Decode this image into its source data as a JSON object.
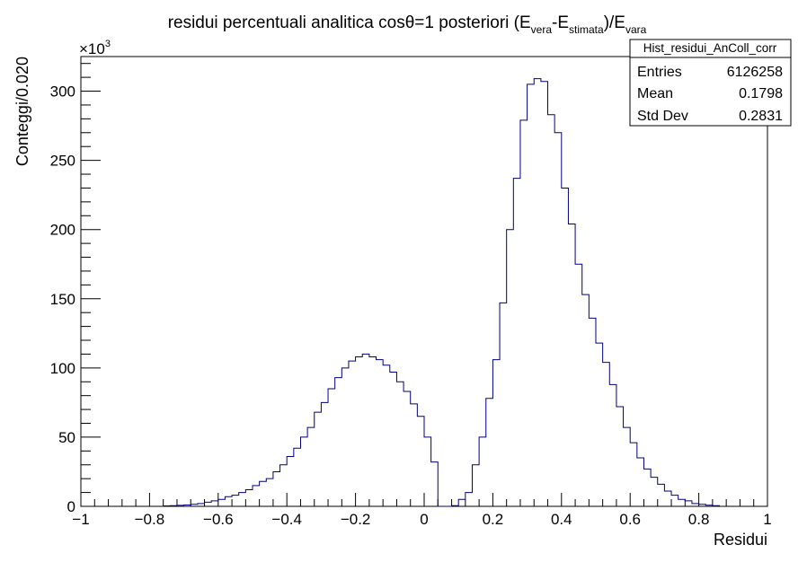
{
  "chart_data": {
    "type": "bar",
    "title": "residui percentuali analitica cosθ=1 posteriori (E",
    "title_parts": {
      "main": "residui percentuali analitica cosθ=1 posteriori (E",
      "sub1": "vera",
      "mid": "-E",
      "sub2": "stimata",
      "end": ")/E",
      "sub3": "vara"
    },
    "xlabel": "Residui",
    "ylabel": "Conteggi/0.020",
    "y_multiplier_label": "×10",
    "y_multiplier_exp": "3",
    "xlim": [
      -1,
      1
    ],
    "ylim": [
      0,
      325
    ],
    "x_ticks": [
      -1,
      -0.8,
      -0.6,
      -0.4,
      -0.2,
      0,
      0.2,
      0.4,
      0.6,
      0.8,
      1
    ],
    "x_tick_labels": [
      "−1",
      "−0.8",
      "−0.6",
      "−0.4",
      "−0.2",
      "0",
      "0.2",
      "0.4",
      "0.6",
      "0.8",
      "1"
    ],
    "y_ticks": [
      0,
      50,
      100,
      150,
      200,
      250,
      300
    ],
    "y_tick_labels": [
      "0",
      "50",
      "100",
      "150",
      "200",
      "250",
      "300"
    ],
    "bin_start": -0.76,
    "bin_width": 0.02,
    "values": [
      0.3,
      0.5,
      0.7,
      1,
      1.5,
      2,
      3,
      4,
      5,
      7,
      8,
      10,
      12,
      15,
      18,
      20,
      25,
      30,
      36,
      42,
      50,
      57,
      68,
      75,
      85,
      93,
      100,
      105,
      108,
      110,
      108,
      106,
      102,
      97,
      90,
      83,
      74,
      65,
      50,
      32,
      0,
      0,
      0.5,
      5,
      10,
      30,
      50,
      78,
      106,
      147,
      200,
      237,
      279,
      305,
      309,
      307,
      283,
      270,
      230,
      204,
      175,
      153,
      136,
      118,
      104,
      88,
      72,
      57,
      46,
      35,
      27,
      21,
      16,
      11,
      8,
      5,
      4,
      2,
      1.5,
      0.8,
      0.5
    ],
    "line_color": "#000080",
    "stats_box": {
      "title": "Hist_residui_AnColl_corr",
      "rows": [
        {
          "label": "Entries",
          "value": "6126258"
        },
        {
          "label": "Mean",
          "value": "0.1798"
        },
        {
          "label": "Std Dev",
          "value": "0.2831"
        }
      ]
    }
  }
}
